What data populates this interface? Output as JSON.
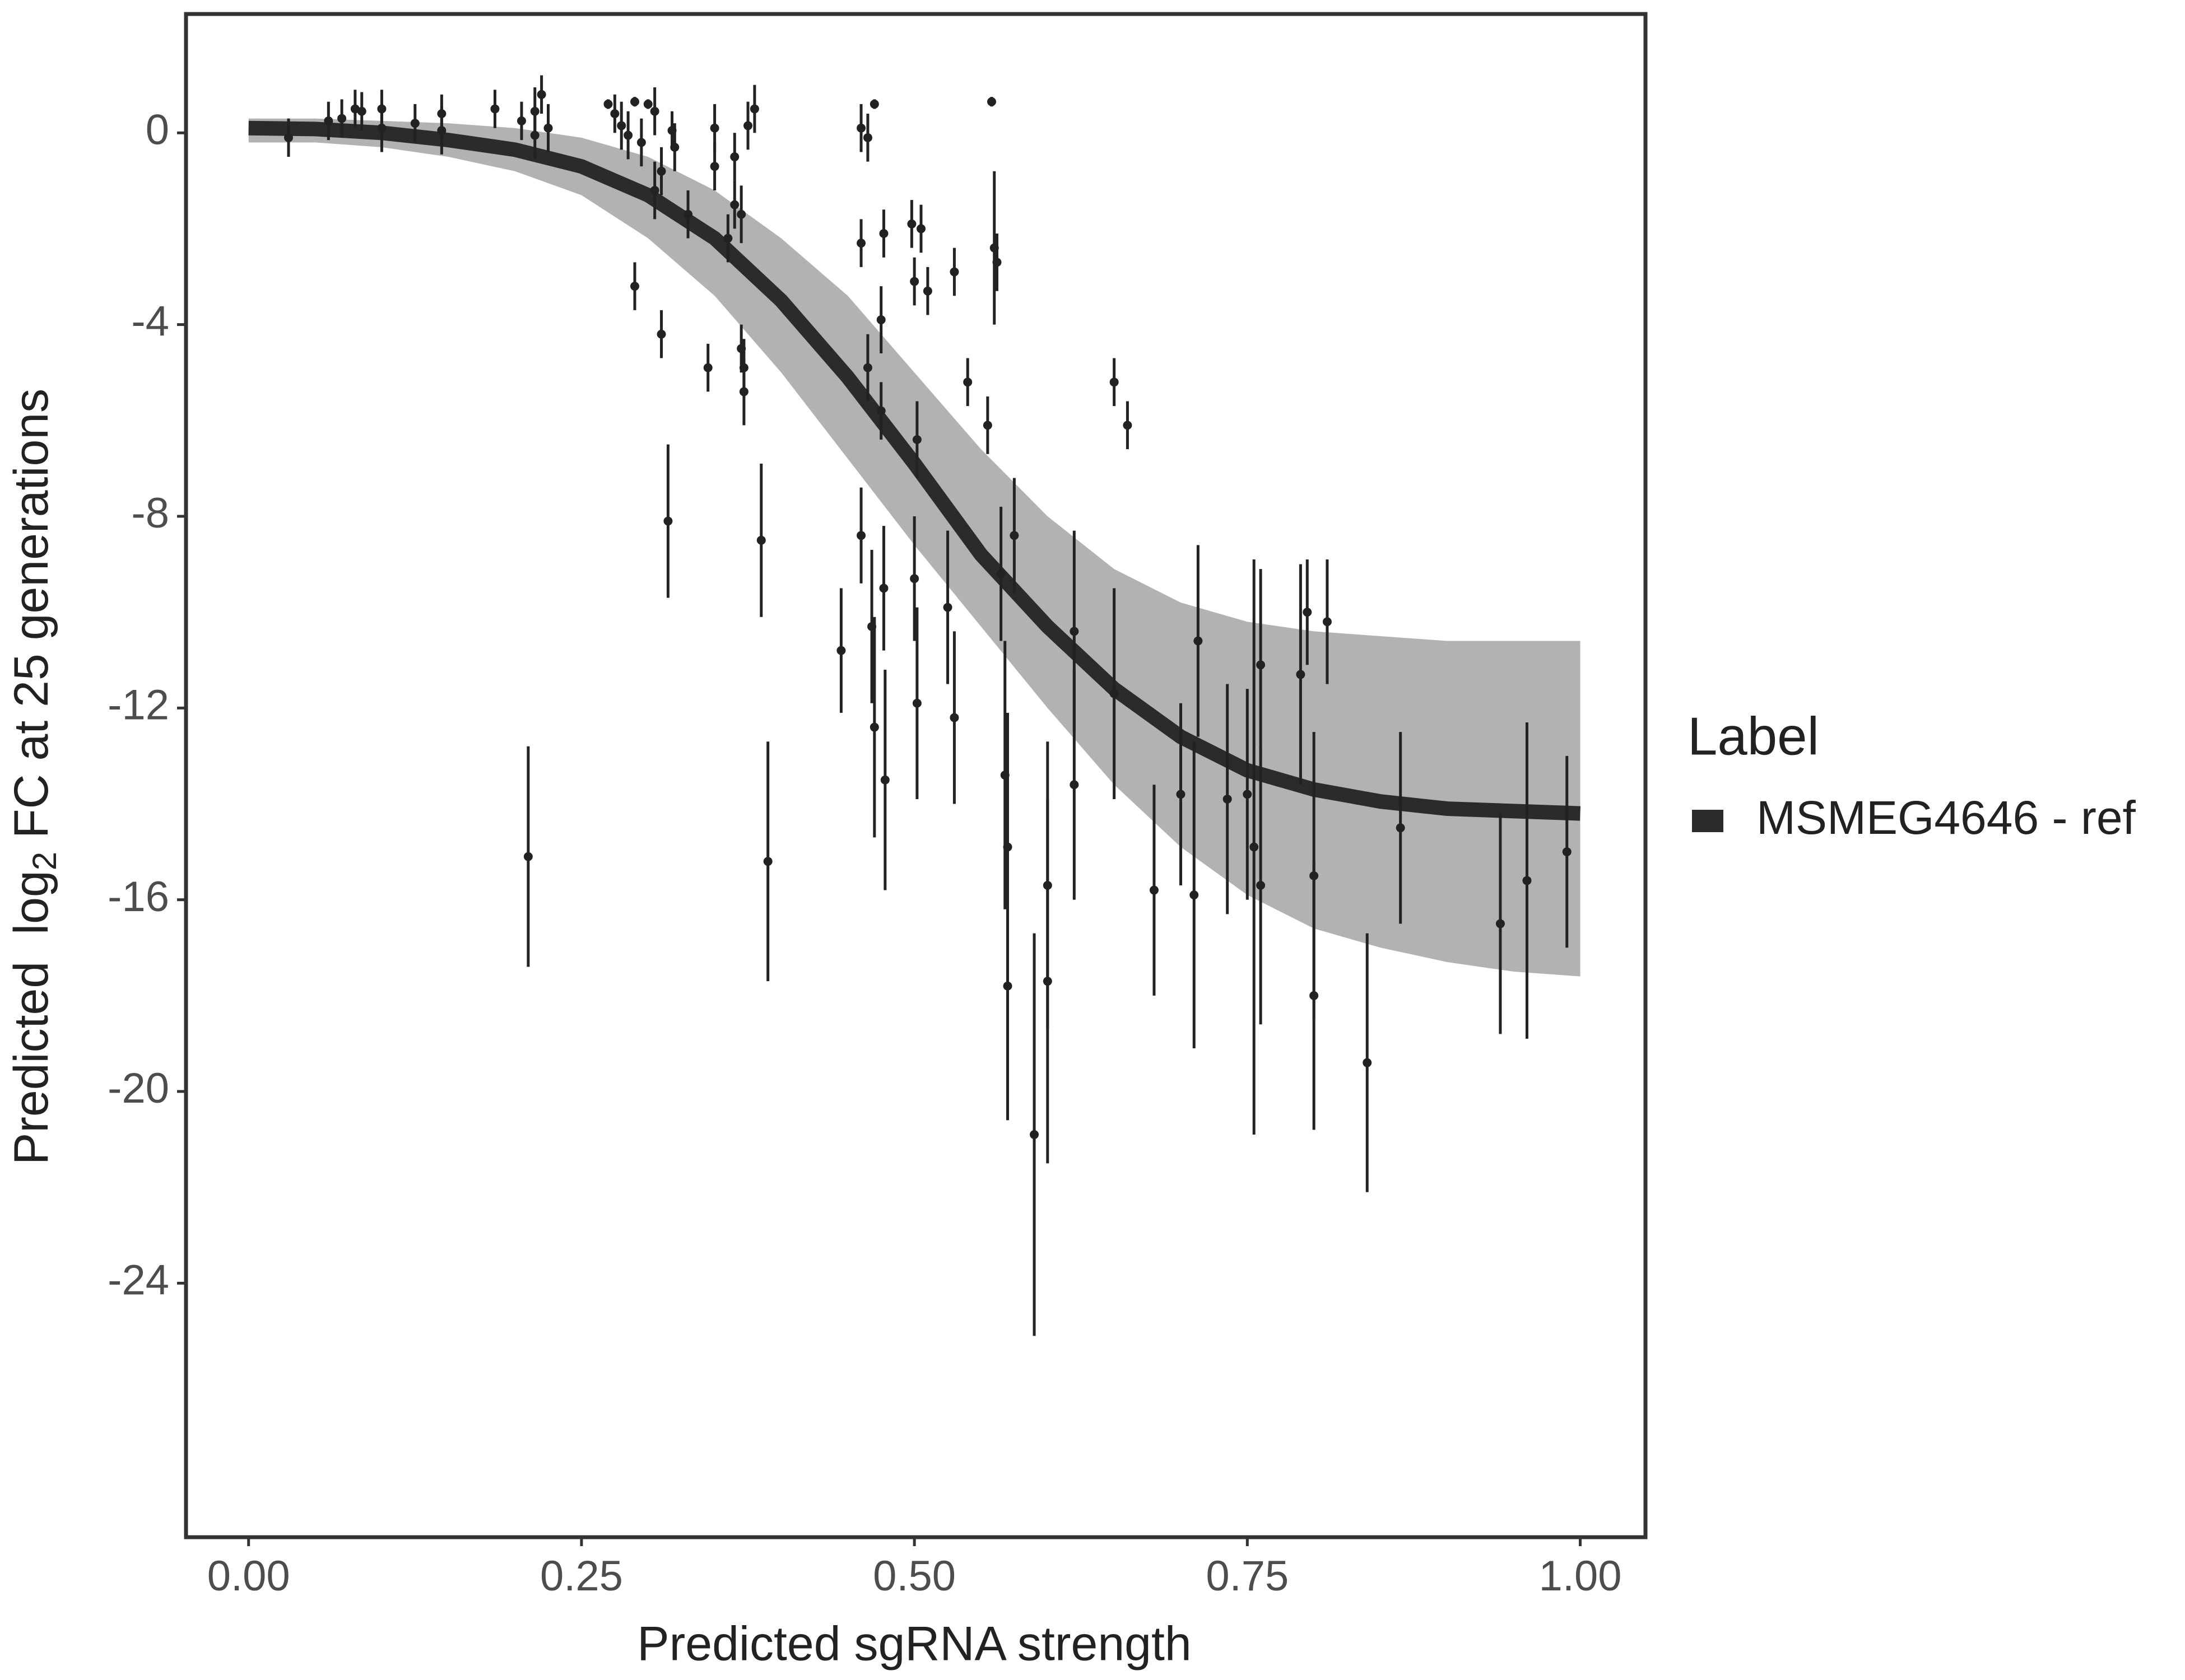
{
  "chart_data": {
    "type": "scatter",
    "xlabel": "Predicted sgRNA strength",
    "ylabel_parts": [
      "Predicted  log",
      "2",
      " FC at 25 generations"
    ],
    "xlim": [
      -0.047,
      1.049
    ],
    "ylim": [
      -29.3,
      2.48
    ],
    "xticks": [
      {
        "value": 0,
        "label": "0.00"
      },
      0.25,
      {
        "value": 0.5,
        "label": "0.50"
      },
      0.75,
      {
        "value": 1,
        "label": "1.00"
      }
    ],
    "yticks": [
      0,
      -4,
      -8,
      -12,
      -16,
      -20,
      -24
    ],
    "legend_title": "Label",
    "legend_position": "right",
    "band": {
      "color": "#aaaaaa",
      "x": [
        0,
        0.05,
        0.1,
        0.15,
        0.2,
        0.25,
        0.3,
        0.35,
        0.4,
        0.45,
        0.5,
        0.55,
        0.6,
        0.65,
        0.7,
        0.75,
        0.8,
        0.85,
        0.9,
        0.95,
        1
      ],
      "upper": [
        0.3,
        0.3,
        0.25,
        0.2,
        0.1,
        -0.1,
        -0.5,
        -1.2,
        -2.2,
        -3.4,
        -5.0,
        -6.6,
        -8.0,
        -9.1,
        -9.8,
        -10.2,
        -10.4,
        -10.5,
        -10.6,
        -10.6,
        -10.6
      ],
      "lower": [
        -0.2,
        -0.2,
        -0.3,
        -0.5,
        -0.8,
        -1.3,
        -2.2,
        -3.4,
        -5.0,
        -6.8,
        -8.6,
        -10.3,
        -12.0,
        -13.6,
        -14.9,
        -15.9,
        -16.6,
        -17.0,
        -17.3,
        -17.5,
        -17.6
      ]
    },
    "fit": {
      "name": "MSMEG4646 - ref",
      "color": "#2b2b2b",
      "x": [
        0,
        0.05,
        0.1,
        0.15,
        0.2,
        0.25,
        0.3,
        0.35,
        0.4,
        0.45,
        0.5,
        0.55,
        0.6,
        0.65,
        0.7,
        0.75,
        0.8,
        0.85,
        0.9,
        0.95,
        1
      ],
      "values": [
        0.1,
        0.08,
        0.0,
        -0.15,
        -0.35,
        -0.7,
        -1.3,
        -2.2,
        -3.5,
        -5.1,
        -6.9,
        -8.8,
        -10.3,
        -11.6,
        -12.6,
        -13.3,
        -13.7,
        -13.95,
        -14.1,
        -14.15,
        -14.2
      ]
    },
    "points": {
      "color": "#222222",
      "x": [
        0.03,
        0.06,
        0.07,
        0.08,
        0.085,
        0.1,
        0.1,
        0.125,
        0.145,
        0.145,
        0.185,
        0.205,
        0.21,
        0.215,
        0.215,
        0.22,
        0.225,
        0.27,
        0.275,
        0.28,
        0.285,
        0.29,
        0.29,
        0.295,
        0.3,
        0.305,
        0.305,
        0.31,
        0.31,
        0.315,
        0.318,
        0.32,
        0.33,
        0.345,
        0.35,
        0.35,
        0.36,
        0.365,
        0.365,
        0.37,
        0.372,
        0.372,
        0.37,
        0.375,
        0.38,
        0.385,
        0.39,
        0.445,
        0.46,
        0.46,
        0.46,
        0.465,
        0.465,
        0.468,
        0.47,
        0.47,
        0.475,
        0.475,
        0.477,
        0.477,
        0.478,
        0.498,
        0.5,
        0.5,
        0.502,
        0.502,
        0.505,
        0.51,
        0.525,
        0.53,
        0.53,
        0.54,
        0.555,
        0.558,
        0.56,
        0.562,
        0.565,
        0.568,
        0.57,
        0.57,
        0.575,
        0.59,
        0.6,
        0.6,
        0.62,
        0.62,
        0.65,
        0.65,
        0.66,
        0.68,
        0.7,
        0.71,
        0.713,
        0.735,
        0.75,
        0.755,
        0.76,
        0.76,
        0.79,
        0.8,
        0.8,
        0.795,
        0.81,
        0.84,
        0.865,
        0.94,
        0.96,
        0.99
      ],
      "values": [
        -0.1,
        0.25,
        0.3,
        0.5,
        0.45,
        0.5,
        0.1,
        0.2,
        0.4,
        0.05,
        0.5,
        0.25,
        -15.1,
        0.45,
        -0.05,
        0.8,
        0.1,
        0.6,
        0.4,
        0.15,
        -0.05,
        0.65,
        -3.2,
        -0.2,
        0.6,
        0.45,
        -1.2,
        -4.2,
        -0.8,
        -8.1,
        0.05,
        -0.3,
        -1.7,
        -4.9,
        0.1,
        -0.7,
        -2.2,
        -1.5,
        -0.5,
        -4.5,
        -4.9,
        -5.4,
        -1.7,
        0.15,
        0.5,
        -8.5,
        -15.2,
        -10.8,
        0.1,
        -2.3,
        -8.4,
        -0.1,
        -4.9,
        -10.3,
        -12.4,
        0.6,
        -5.8,
        -3.9,
        -2.1,
        -9.5,
        -13.5,
        -1.9,
        -3.1,
        -9.3,
        -11.9,
        -6.4,
        -2.0,
        -3.3,
        -9.9,
        -12.2,
        -2.9,
        -5.2,
        -6.1,
        0.65,
        -2.4,
        -2.7,
        -9.2,
        -13.4,
        -14.9,
        -17.8,
        -8.4,
        -20.9,
        -15.7,
        -17.7,
        -13.6,
        -10.4,
        -5.2,
        -11.7,
        -6.1,
        -15.8,
        -13.8,
        -15.9,
        -10.6,
        -13.9,
        -13.8,
        -14.9,
        -15.7,
        -11.1,
        -11.3,
        -18.0,
        -15.5,
        -10.0,
        -10.2,
        -19.4,
        -14.5,
        -16.5,
        -15.6,
        -15.0
      ],
      "errors": [
        0.4,
        0.4,
        0.4,
        0.4,
        0.4,
        0.4,
        0.5,
        0.4,
        0.4,
        0.5,
        0.4,
        0.4,
        2.3,
        0.5,
        0.5,
        0.4,
        0.5,
        0.1,
        0.4,
        0.5,
        0.5,
        0.1,
        0.5,
        0.5,
        0.1,
        0.5,
        0.6,
        0.5,
        0.5,
        1.6,
        0.4,
        0.5,
        0.5,
        0.5,
        0.5,
        0.5,
        0.5,
        0.5,
        0.5,
        0.5,
        0.6,
        0.7,
        0.6,
        0.5,
        0.5,
        1.6,
        2.5,
        1.3,
        0.5,
        0.5,
        1.0,
        0.5,
        0.7,
        1.6,
        2.3,
        0.1,
        0.6,
        0.7,
        0.5,
        1.3,
        2.3,
        0.5,
        0.5,
        1.3,
        2.0,
        0.8,
        0.5,
        0.5,
        1.6,
        1.8,
        0.5,
        0.5,
        0.6,
        0.1,
        1.6,
        0.6,
        1.4,
        2.8,
        2.8,
        2.8,
        1.2,
        4.2,
        3.0,
        3.8,
        2.4,
        2.1,
        0.5,
        2.2,
        0.5,
        2.2,
        1.9,
        3.2,
        2.0,
        2.4,
        2.2,
        6.0,
        2.9,
        2.0,
        2.3,
        2.8,
        3.0,
        1.1,
        1.3,
        2.7,
        2.0,
        2.3,
        3.3,
        2.0
      ]
    }
  }
}
